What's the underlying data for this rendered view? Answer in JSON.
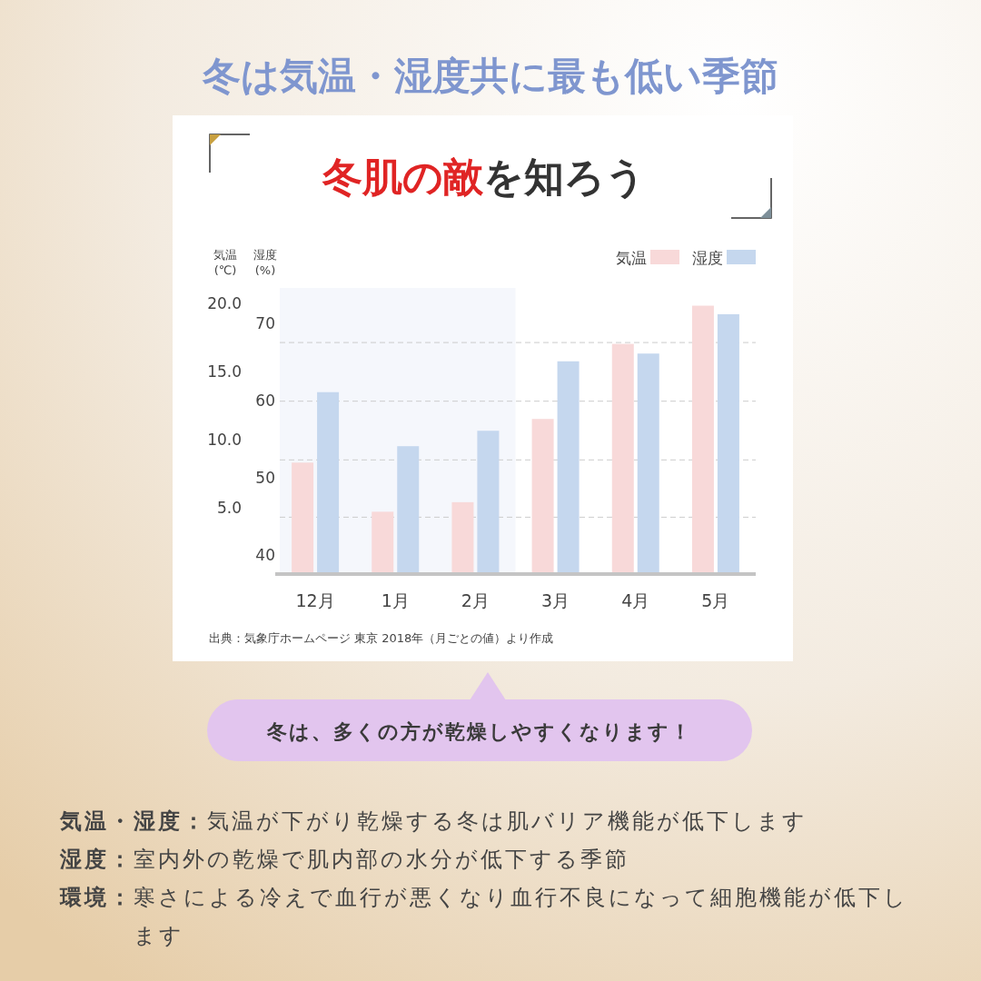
{
  "chart_data": {
    "type": "bar",
    "title": "冬は気温・湿度共に最も低い季節",
    "subtitle": "冬肌の敵を知ろう",
    "ylabel": "気温\n(℃)",
    "y2label": "湿度\n(%)",
    "categories": [
      "12月",
      "1月",
      "2月",
      "3月",
      "4月",
      "5月"
    ],
    "series": [
      {
        "name": "気温",
        "color": "#f8d9d9",
        "values": [
          8.3,
          4.7,
          5.4,
          11.5,
          17.0,
          19.8
        ]
      },
      {
        "name": "湿度",
        "color": "#c5d7ee",
        "axis": "y2",
        "values": [
          61.1,
          54.1,
          56.1,
          65.1,
          66.1,
          71.2
        ]
      }
    ],
    "ylim": [
      0,
      21.1
    ],
    "yticks": [
      {
        "value": 5,
        "label": "5.0"
      },
      {
        "value": 10,
        "label": "10.0"
      },
      {
        "value": 15,
        "label": "15.0"
      },
      {
        "value": 20,
        "label": "20.0"
      }
    ],
    "y2lim": [
      37.3,
      74.6
    ],
    "y2ticks": [
      40,
      50,
      60,
      70
    ],
    "ref_lines": [
      {
        "axis": "y",
        "value": 4.3,
        "color": "#cccccc",
        "line_style": "dashed"
      },
      {
        "axis": "y",
        "value": 8.5,
        "color": "#cccccc",
        "line_style": "dashed"
      },
      {
        "axis": "y",
        "value": 12.8,
        "color": "#cccccc",
        "line_style": "dashed"
      },
      {
        "axis": "y",
        "value": 17.1,
        "color": "#cccccc",
        "line_style": "dashed"
      }
    ],
    "bands": [
      {
        "axis": "x",
        "from": "12月",
        "to": "2月",
        "color": "#f5f7fc"
      }
    ],
    "legend": "top right",
    "grid": false,
    "annotations": [
      "出典：気象庁ホームページ 東京 2018年（月ごとの値）より作成",
      "冬は、多くの方が乾燥しやすくなります！",
      "気温・湿度：気温が下がり乾燥する冬は肌バリア機能が低下します",
      "湿度：室内外の乾燥で肌内部の水分が低下する季節",
      "環境：寒さによる冷えで血行が悪くなり血行不良になって細胞機能が低下します"
    ]
  }
}
